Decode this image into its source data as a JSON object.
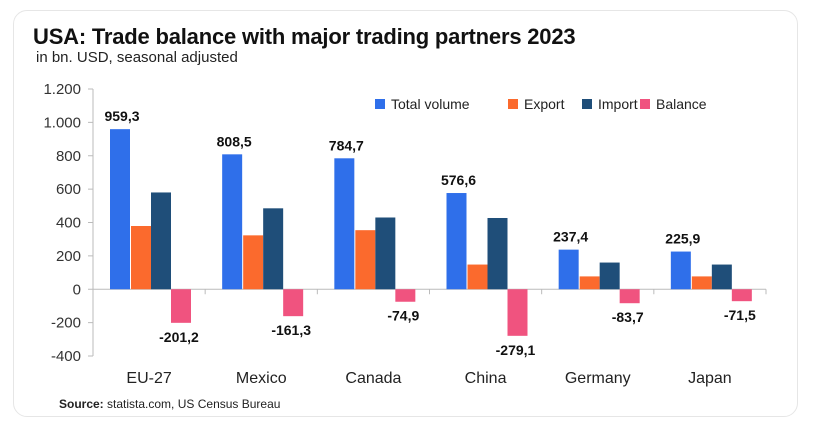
{
  "header": {
    "title": "USA: Trade balance with major trading partners 2023",
    "subtitle": "in bn. USD, seasonal adjusted"
  },
  "footer": {
    "source_label": "Source:",
    "source_text": "statista.com, US Census Bureau"
  },
  "chart_data": {
    "type": "bar",
    "categories": [
      "EU-27",
      "Mexico",
      "Canada",
      "China",
      "Germany",
      "Japan"
    ],
    "series": [
      {
        "name": "Total volume",
        "color": "#2f6fea",
        "values": [
          959.3,
          808.5,
          784.7,
          576.6,
          237.4,
          225.9
        ]
      },
      {
        "name": "Export",
        "color": "#fb6a2d",
        "values": [
          379,
          323,
          354,
          148,
          77,
          77
        ]
      },
      {
        "name": "Import",
        "color": "#1f4e79",
        "values": [
          580,
          485,
          430,
          427,
          160,
          148
        ]
      },
      {
        "name": "Balance",
        "color": "#f0537f",
        "values": [
          -201.2,
          -161.3,
          -74.9,
          -279.1,
          -83.7,
          -71.5
        ]
      }
    ],
    "data_labels": {
      "Total volume": [
        "959,3",
        "808,5",
        "784,7",
        "576,6",
        "237,4",
        "225,9"
      ],
      "Balance": [
        "-201,2",
        "-161,3",
        "-74,9",
        "-279,1",
        "-83,7",
        "-71,5"
      ]
    },
    "y_ticks": [
      {
        "value": 1200,
        "label": "1.200"
      },
      {
        "value": 1000,
        "label": "1.000"
      },
      {
        "value": 800,
        "label": "800"
      },
      {
        "value": 600,
        "label": "600"
      },
      {
        "value": 400,
        "label": "400"
      },
      {
        "value": 200,
        "label": "200"
      },
      {
        "value": 0,
        "label": "0"
      },
      {
        "value": -200,
        "label": "-200"
      },
      {
        "value": -400,
        "label": "-400"
      }
    ],
    "ylim": [
      -400,
      1200
    ],
    "legend_position": "top-right",
    "grid": false
  }
}
